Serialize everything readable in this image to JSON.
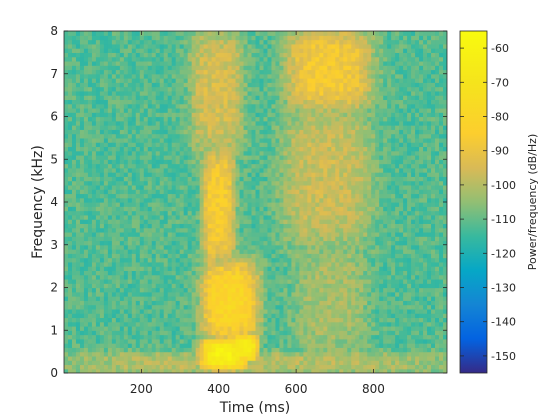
{
  "chart_data": {
    "type": "heatmap",
    "title": "",
    "xlabel": "Time (ms)",
    "ylabel": "Frequency (kHz)",
    "xlim": [
      0,
      990
    ],
    "ylim": [
      0,
      8
    ],
    "xticks": [
      200,
      400,
      600,
      800
    ],
    "yticks": [
      0,
      1,
      2,
      3,
      4,
      5,
      6,
      7,
      8
    ],
    "grid": false,
    "colorbar": {
      "label": "Power/frequency (dB/Hz)",
      "range": [
        -155,
        -55
      ],
      "ticks": [
        -60,
        -70,
        -80,
        -90,
        -100,
        -110,
        -120,
        -130,
        -140,
        -150
      ],
      "colormap": "parula"
    },
    "background_level_db": -112,
    "features": [
      {
        "time_ms": [
          355,
          470
        ],
        "freq_khz": [
          0.1,
          0.8
        ],
        "level_db": -62
      },
      {
        "time_ms": [
          440,
          500
        ],
        "freq_khz": [
          0.3,
          0.9
        ],
        "level_db": -64
      },
      {
        "time_ms": [
          360,
          500
        ],
        "freq_khz": [
          0.8,
          2.6
        ],
        "level_db": -80
      },
      {
        "time_ms": [
          360,
          440
        ],
        "freq_khz": [
          2.6,
          5.2
        ],
        "level_db": -85
      },
      {
        "time_ms": [
          330,
          460
        ],
        "freq_khz": [
          5.2,
          8.0
        ],
        "level_db": -95
      },
      {
        "time_ms": [
          580,
          790
        ],
        "freq_khz": [
          6.2,
          8.0
        ],
        "level_db": -87
      },
      {
        "time_ms": [
          570,
          790
        ],
        "freq_khz": [
          3.0,
          6.2
        ],
        "level_db": -97
      },
      {
        "time_ms": [
          600,
          780
        ],
        "freq_khz": [
          0.5,
          3.0
        ],
        "level_db": -102
      },
      {
        "time_ms": [
          0,
          990
        ],
        "freq_khz": [
          0.0,
          0.5
        ],
        "level_db": -100
      }
    ]
  }
}
